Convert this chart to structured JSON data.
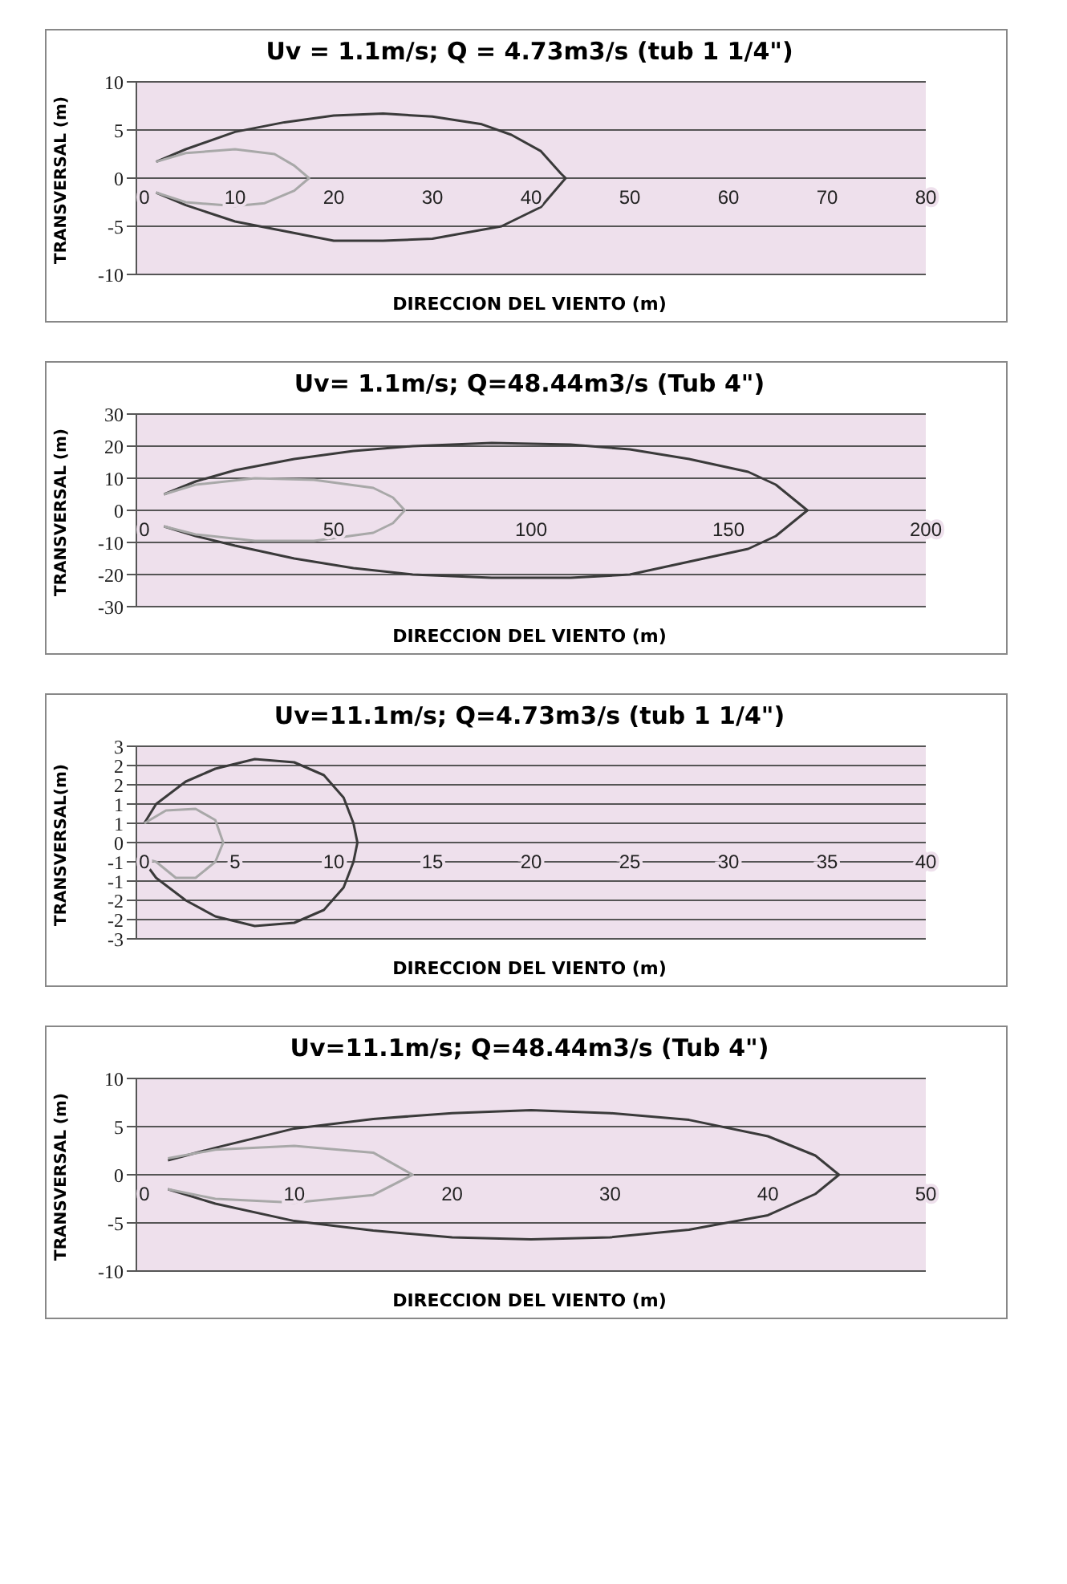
{
  "chart_data": [
    {
      "type": "line",
      "title": "Uv = 1.1m/s; Q = 4.73m3/s (tub 1 1/4\")",
      "xlabel": "DIRECCION DEL VIENTO (m)",
      "ylabel": "TRANSVERSAL (m)",
      "xlim": [
        0,
        80
      ],
      "xticks": [
        0,
        10,
        20,
        30,
        40,
        50,
        60,
        70,
        80
      ],
      "ylim": [
        -10,
        10
      ],
      "yticks": [
        -10,
        -5,
        0,
        5,
        10
      ],
      "grid": "y",
      "marker": "none",
      "line_style": "solid",
      "series": [
        {
          "color": "#3a3a3a",
          "x": [
            2,
            5,
            10,
            15,
            20,
            25,
            30,
            35,
            38,
            41,
            43,
            43.5,
            41,
            37,
            30,
            25,
            20,
            15,
            10,
            5,
            2
          ],
          "values": [
            1.7,
            3,
            4.8,
            5.8,
            6.5,
            6.7,
            6.4,
            5.6,
            4.5,
            2.8,
            0.5,
            0,
            -3,
            -5,
            -6.3,
            -6.5,
            -6.5,
            -5.5,
            -4.5,
            -2.8,
            -1.5
          ]
        },
        {
          "color": "#a8a8a8",
          "x": [
            2,
            5,
            10,
            14,
            16,
            17.5,
            16,
            13,
            10,
            5,
            2
          ],
          "values": [
            1.7,
            2.6,
            3,
            2.5,
            1.3,
            0,
            -1.3,
            -2.6,
            -2.9,
            -2.5,
            -1.5
          ]
        }
      ]
    },
    {
      "type": "line",
      "title": "Uv= 1.1m/s; Q=48.44m3/s (Tub 4\")",
      "xlabel": "DIRECCION DEL VIENTO (m)",
      "ylabel": "TRANSVERSAL (m)",
      "xlim": [
        0,
        200
      ],
      "xticks": [
        0,
        50,
        100,
        150,
        200
      ],
      "ylim": [
        -30,
        30
      ],
      "yticks": [
        -30,
        -20,
        -10,
        0,
        10,
        20,
        30
      ],
      "grid": "y",
      "marker": "none",
      "line_style": "solid",
      "series": [
        {
          "color": "#3a3a3a",
          "x": [
            7,
            15,
            25,
            40,
            55,
            70,
            90,
            110,
            125,
            140,
            155,
            162,
            170,
            162,
            155,
            140,
            125,
            110,
            90,
            70,
            55,
            40,
            25,
            15,
            7
          ],
          "values": [
            5,
            9,
            12.5,
            16,
            18.5,
            20,
            21,
            20.5,
            19,
            16,
            12,
            8,
            0,
            -8,
            -12,
            -16,
            -20,
            -21,
            -21,
            -20,
            -18,
            -15,
            -11,
            -8,
            -5
          ]
        },
        {
          "color": "#a8a8a8",
          "x": [
            7,
            15,
            30,
            45,
            60,
            65,
            68,
            65,
            60,
            45,
            30,
            15,
            7
          ],
          "values": [
            5,
            8,
            10,
            9.5,
            7,
            4,
            0,
            -4,
            -7,
            -9.5,
            -9.5,
            -7.5,
            -5
          ]
        }
      ]
    },
    {
      "type": "line",
      "title": "Uv=11.1m/s; Q=4.73m3/s (tub 1 1/4\")",
      "xlabel": "DIRECCION DEL VIENTO (m)",
      "ylabel": "TRANSVERSAL(m)",
      "xlim": [
        0,
        40
      ],
      "xticks": [
        0,
        5,
        10,
        15,
        20,
        25,
        30,
        35,
        40
      ],
      "ylim": [
        -3,
        3
      ],
      "yticks": [
        {
          "value": -3,
          "label": "-3"
        },
        {
          "value": -2.4,
          "label": "-2"
        },
        {
          "value": -1.8,
          "label": "-2"
        },
        {
          "value": -1.2,
          "label": "-1"
        },
        {
          "value": -0.6,
          "label": "-1"
        },
        {
          "value": 0,
          "label": "0"
        },
        {
          "value": 0.6,
          "label": "1"
        },
        {
          "value": 1.2,
          "label": "1"
        },
        {
          "value": 1.8,
          "label": "2"
        },
        {
          "value": 2.4,
          "label": "2"
        },
        {
          "value": 3,
          "label": "3"
        }
      ],
      "grid": "y",
      "marker": "none",
      "line_style": "solid",
      "series": [
        {
          "color": "#3a3a3a",
          "x": [
            0.4,
            1,
            2.5,
            4,
            6,
            8,
            9.5,
            10.5,
            11,
            11.2,
            11,
            10.5,
            9.5,
            8,
            6,
            4,
            2.5,
            1,
            0.4
          ],
          "values": [
            0.6,
            1.2,
            1.9,
            2.3,
            2.6,
            2.5,
            2.1,
            1.4,
            0.6,
            0,
            -0.6,
            -1.4,
            -2.1,
            -2.5,
            -2.6,
            -2.3,
            -1.8,
            -1.1,
            -0.6
          ]
        },
        {
          "color": "#a8a8a8",
          "x": [
            0.4,
            1.5,
            3,
            4,
            4.4,
            4,
            3,
            2,
            1,
            0.4
          ],
          "values": [
            0.6,
            1,
            1.05,
            0.7,
            0,
            -0.6,
            -1.1,
            -1.1,
            -0.6,
            -0.5
          ]
        }
      ]
    },
    {
      "type": "line",
      "title": "Uv=11.1m/s; Q=48.44m3/s (Tub 4\")",
      "xlabel": "DIRECCION DEL VIENTO (m)",
      "ylabel": "TRANSVERSAL (m)",
      "xlim": [
        0,
        50
      ],
      "xticks": [
        0,
        10,
        20,
        30,
        40,
        50
      ],
      "ylim": [
        -10,
        10
      ],
      "yticks": [
        -10,
        -5,
        0,
        5,
        10
      ],
      "grid": "y",
      "marker": "none",
      "line_style": "solid",
      "series": [
        {
          "color": "#3a3a3a",
          "x": [
            2,
            5,
            10,
            15,
            20,
            25,
            30,
            35,
            40,
            43,
            44.5,
            43,
            40,
            35,
            30,
            25,
            20,
            15,
            10,
            5,
            2
          ],
          "values": [
            1.5,
            2.8,
            4.8,
            5.8,
            6.4,
            6.7,
            6.4,
            5.7,
            4,
            2,
            0,
            -2,
            -4.2,
            -5.7,
            -6.5,
            -6.7,
            -6.5,
            -5.8,
            -4.8,
            -3,
            -1.5
          ]
        },
        {
          "color": "#a8a8a8",
          "x": [
            2,
            5,
            10,
            15,
            17.5,
            15,
            10,
            5,
            2
          ],
          "values": [
            1.7,
            2.6,
            3,
            2.3,
            0,
            -2.1,
            -2.9,
            -2.5,
            -1.5
          ]
        }
      ]
    }
  ]
}
